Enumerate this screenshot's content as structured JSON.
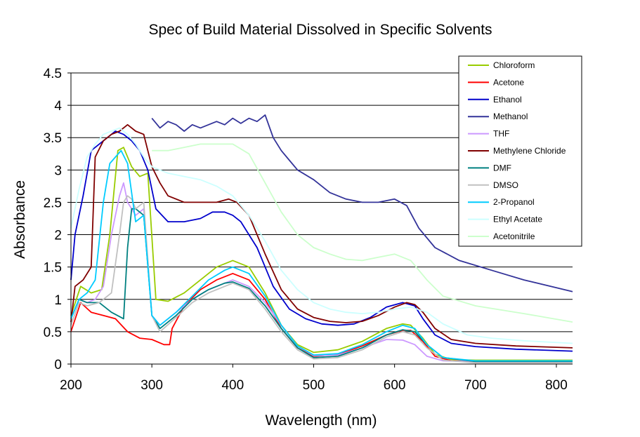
{
  "chart_data": {
    "type": "line",
    "title": "Spec of Build Material Dissolved in Specific Solvents",
    "xlabel": "Wavelength (nm)",
    "ylabel": "Absorbance",
    "xlim": [
      200,
      820
    ],
    "ylim": [
      0,
      4.5
    ],
    "xticks": [
      "200",
      "300",
      "400",
      "500",
      "600",
      "700",
      "800"
    ],
    "yticks": [
      "0",
      "0.5",
      "1",
      "1.5",
      "2",
      "2.5",
      "3",
      "3.5",
      "4",
      "4.5"
    ],
    "grid": "horizontal major",
    "legend_position": "top-right",
    "series": [
      {
        "name": "Chloroform",
        "color": "#99cc00",
        "x": [
          200,
          212,
          225,
          238,
          248,
          258,
          265,
          275,
          285,
          295,
          305,
          320,
          340,
          360,
          380,
          400,
          420,
          440,
          460,
          480,
          500,
          530,
          560,
          590,
          610,
          620,
          635,
          650,
          670,
          700,
          820
        ],
        "y": [
          0.75,
          1.2,
          1.1,
          1.15,
          2.0,
          3.3,
          3.35,
          3.05,
          2.9,
          2.95,
          1.0,
          0.97,
          1.1,
          1.3,
          1.5,
          1.6,
          1.5,
          1.1,
          0.6,
          0.3,
          0.18,
          0.22,
          0.35,
          0.55,
          0.62,
          0.6,
          0.4,
          0.15,
          0.07,
          0.06,
          0.06
        ]
      },
      {
        "name": "Acetone",
        "color": "#ff0000",
        "x": [
          200,
          212,
          225,
          240,
          255,
          270,
          285,
          300,
          315,
          322,
          325,
          340,
          360,
          380,
          400,
          420,
          440,
          460,
          480,
          500,
          530,
          560,
          590,
          610,
          620,
          635,
          650,
          670,
          700,
          820
        ],
        "y": [
          0.5,
          0.95,
          0.8,
          0.75,
          0.7,
          0.5,
          0.4,
          0.38,
          0.3,
          0.3,
          0.55,
          0.9,
          1.15,
          1.3,
          1.4,
          1.3,
          1.0,
          0.55,
          0.25,
          0.12,
          0.15,
          0.28,
          0.45,
          0.52,
          0.52,
          0.35,
          0.12,
          0.05,
          0.04,
          0.04
        ]
      },
      {
        "name": "Ethanol",
        "color": "#0000cc",
        "x": [
          200,
          205,
          215,
          225,
          235,
          245,
          255,
          265,
          275,
          285,
          295,
          305,
          320,
          340,
          360,
          375,
          390,
          400,
          410,
          430,
          450,
          470,
          490,
          510,
          530,
          550,
          570,
          590,
          610,
          625,
          635,
          650,
          670,
          700,
          750,
          820
        ],
        "y": [
          1.3,
          2.0,
          2.6,
          3.3,
          3.4,
          3.5,
          3.6,
          3.55,
          3.45,
          3.3,
          3.0,
          2.4,
          2.2,
          2.2,
          2.25,
          2.35,
          2.35,
          2.3,
          2.2,
          1.8,
          1.2,
          0.85,
          0.7,
          0.62,
          0.6,
          0.62,
          0.72,
          0.88,
          0.95,
          0.9,
          0.7,
          0.45,
          0.32,
          0.27,
          0.23,
          0.2
        ]
      },
      {
        "name": "Methanol",
        "color": "#333399",
        "x": [
          300,
          310,
          320,
          330,
          340,
          350,
          360,
          370,
          380,
          390,
          400,
          410,
          420,
          430,
          440,
          450,
          460,
          470,
          480,
          500,
          520,
          540,
          560,
          580,
          600,
          615,
          630,
          650,
          680,
          720,
          760,
          820
        ],
        "y": [
          3.8,
          3.65,
          3.75,
          3.7,
          3.6,
          3.7,
          3.65,
          3.7,
          3.75,
          3.7,
          3.8,
          3.72,
          3.8,
          3.75,
          3.85,
          3.5,
          3.3,
          3.15,
          3.0,
          2.85,
          2.65,
          2.55,
          2.5,
          2.5,
          2.55,
          2.45,
          2.1,
          1.8,
          1.6,
          1.45,
          1.3,
          1.12
        ]
      },
      {
        "name": "THF",
        "color": "#cc99ff",
        "x": [
          200,
          210,
          220,
          230,
          240,
          250,
          260,
          265,
          270,
          280,
          290,
          300,
          310,
          330,
          350,
          370,
          390,
          400,
          420,
          440,
          460,
          480,
          500,
          530,
          560,
          590,
          610,
          625,
          640,
          660,
          700,
          820
        ],
        "y": [
          0.7,
          1.0,
          0.95,
          1.0,
          1.2,
          2.0,
          2.6,
          2.8,
          2.5,
          2.3,
          2.4,
          0.75,
          0.6,
          0.8,
          1.0,
          1.15,
          1.25,
          1.3,
          1.2,
          0.95,
          0.6,
          0.28,
          0.13,
          0.14,
          0.25,
          0.38,
          0.37,
          0.3,
          0.12,
          0.05,
          0.04,
          0.04
        ]
      },
      {
        "name": "Methylene Chloride",
        "color": "#800000",
        "x": [
          200,
          205,
          215,
          225,
          230,
          240,
          250,
          260,
          270,
          280,
          290,
          300,
          310,
          320,
          340,
          360,
          380,
          395,
          405,
          420,
          440,
          460,
          480,
          500,
          520,
          540,
          560,
          580,
          600,
          615,
          625,
          635,
          650,
          670,
          700,
          750,
          820
        ],
        "y": [
          0.65,
          1.2,
          1.3,
          1.5,
          3.2,
          3.45,
          3.55,
          3.6,
          3.7,
          3.6,
          3.55,
          3.05,
          2.8,
          2.6,
          2.5,
          2.5,
          2.5,
          2.55,
          2.5,
          2.3,
          1.7,
          1.15,
          0.85,
          0.72,
          0.66,
          0.64,
          0.66,
          0.75,
          0.88,
          0.95,
          0.92,
          0.8,
          0.55,
          0.38,
          0.32,
          0.28,
          0.25
        ]
      },
      {
        "name": "DMF",
        "color": "#008080",
        "x": [
          200,
          210,
          220,
          235,
          250,
          265,
          270,
          275,
          280,
          290,
          300,
          310,
          330,
          350,
          370,
          390,
          400,
          420,
          440,
          460,
          480,
          500,
          530,
          560,
          590,
          610,
          625,
          640,
          660,
          700,
          820
        ],
        "y": [
          0.7,
          1.0,
          0.95,
          0.95,
          0.8,
          0.7,
          1.8,
          2.4,
          2.4,
          2.3,
          0.75,
          0.55,
          0.75,
          1.0,
          1.15,
          1.25,
          1.27,
          1.17,
          0.9,
          0.55,
          0.25,
          0.1,
          0.12,
          0.25,
          0.45,
          0.53,
          0.5,
          0.3,
          0.1,
          0.04,
          0.04
        ]
      },
      {
        "name": "DMSO",
        "color": "#c0c0c0",
        "x": [
          200,
          210,
          220,
          235,
          250,
          260,
          265,
          270,
          275,
          280,
          290,
          300,
          310,
          330,
          350,
          370,
          390,
          400,
          420,
          440,
          460,
          480,
          500,
          530,
          560,
          590,
          610,
          625,
          640,
          660,
          700,
          820
        ],
        "y": [
          0.6,
          0.95,
          0.9,
          0.95,
          1.1,
          2.0,
          2.5,
          2.6,
          2.55,
          2.4,
          2.5,
          0.75,
          0.5,
          0.72,
          0.95,
          1.1,
          1.2,
          1.25,
          1.15,
          0.85,
          0.5,
          0.22,
          0.08,
          0.1,
          0.22,
          0.42,
          0.5,
          0.45,
          0.25,
          0.06,
          0.02,
          0.02
        ]
      },
      {
        "name": "2-Propanol",
        "color": "#00ccff",
        "x": [
          200,
          210,
          220,
          230,
          240,
          248,
          255,
          262,
          270,
          280,
          290,
          300,
          310,
          330,
          350,
          370,
          390,
          400,
          420,
          440,
          460,
          480,
          500,
          530,
          560,
          590,
          610,
          625,
          640,
          660,
          700,
          820
        ],
        "y": [
          0.7,
          1.0,
          1.1,
          1.3,
          2.5,
          3.1,
          3.2,
          3.3,
          3.1,
          2.2,
          2.3,
          0.75,
          0.6,
          0.8,
          1.05,
          1.3,
          1.45,
          1.5,
          1.4,
          1.05,
          0.6,
          0.28,
          0.14,
          0.16,
          0.3,
          0.5,
          0.6,
          0.55,
          0.3,
          0.1,
          0.05,
          0.05
        ]
      },
      {
        "name": "Ethyl Acetate",
        "color": "#ccffff",
        "x": [
          200,
          210,
          220,
          230,
          240,
          250,
          260,
          270,
          280,
          290,
          300,
          320,
          340,
          360,
          380,
          400,
          420,
          440,
          460,
          480,
          500,
          520,
          540,
          560,
          580,
          600,
          620,
          640,
          660,
          690,
          720,
          760,
          820
        ],
        "y": [
          2.1,
          2.7,
          3.2,
          3.4,
          3.55,
          3.6,
          3.65,
          3.55,
          3.4,
          3.2,
          3.05,
          2.95,
          2.9,
          2.85,
          2.75,
          2.6,
          2.3,
          1.9,
          1.45,
          1.15,
          0.95,
          0.85,
          0.8,
          0.78,
          0.8,
          0.85,
          0.88,
          0.8,
          0.62,
          0.45,
          0.4,
          0.36,
          0.32
        ]
      },
      {
        "name": "Acetonitrile",
        "color": "#ccffcc",
        "x": [
          300,
          320,
          340,
          360,
          380,
          400,
          420,
          440,
          460,
          480,
          500,
          520,
          540,
          560,
          580,
          600,
          620,
          640,
          660,
          700,
          760,
          820
        ],
        "y": [
          3.3,
          3.3,
          3.35,
          3.4,
          3.4,
          3.4,
          3.25,
          2.8,
          2.35,
          2.0,
          1.8,
          1.7,
          1.62,
          1.6,
          1.65,
          1.7,
          1.6,
          1.3,
          1.05,
          0.9,
          0.78,
          0.65
        ]
      }
    ]
  }
}
